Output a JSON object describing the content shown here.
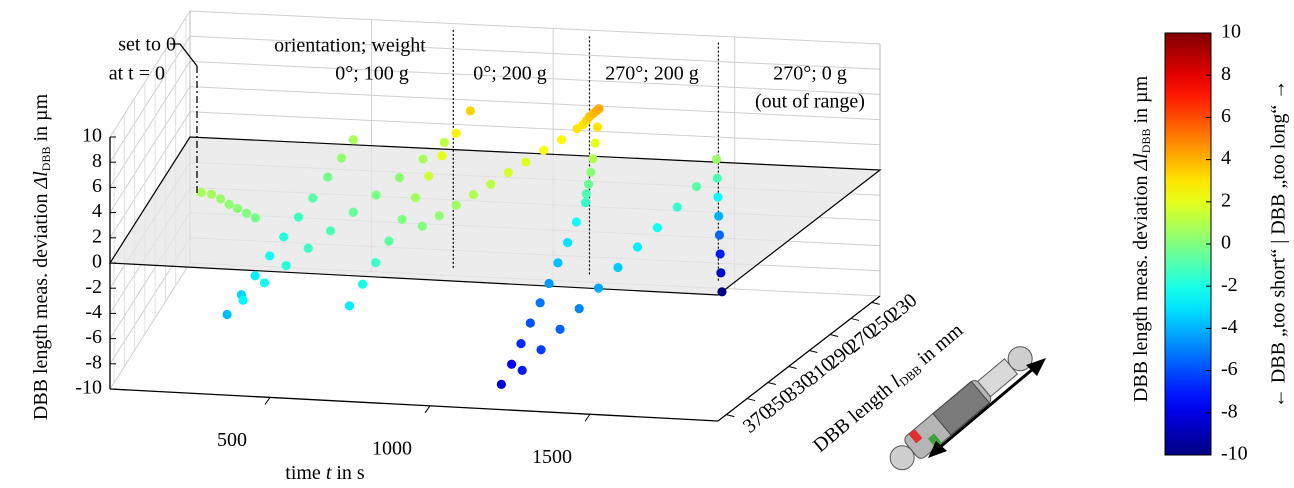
{
  "chart_data": {
    "type": "scatter3d",
    "zlabel": [
      "DBB length meas. deviation ",
      "Δl",
      "DBB",
      " in µm"
    ],
    "xlabel": [
      "time ",
      "t",
      " in s"
    ],
    "ylabel": [
      "DBB length ",
      "l",
      "DBB",
      " in mm"
    ],
    "xlim": [
      0,
      1900
    ],
    "xticks": [
      500,
      1000,
      1500
    ],
    "ylim": [
      378,
      222
    ],
    "yticks": [
      370,
      350,
      330,
      310,
      290,
      270,
      250,
      230
    ],
    "zlim": [
      -10,
      10
    ],
    "zticks": [
      10,
      8,
      6,
      4,
      2,
      0,
      -2,
      -4,
      -6,
      -8,
      -10
    ],
    "zero_plane": 0,
    "grid": true,
    "colormap": "jet",
    "colorbar": {
      "clim": [
        -10,
        10
      ],
      "ticks": [
        10,
        8,
        6,
        4,
        2,
        0,
        -2,
        -4,
        -6,
        -8,
        -10
      ],
      "label": [
        "DBB length meas. deviation ",
        "Δl",
        "DBB",
        " in µm"
      ],
      "side_label": "← DBB „too short“ | DBB „too long“ →"
    },
    "phase_boundaries": [
      725,
      1100,
      1455
    ],
    "annotations": [
      "set to 0",
      "at t = 0",
      "orientation; weight",
      "0°; 100 g",
      "0°; 200 g",
      "270°; 200 g",
      "270°; 0 g",
      "(out of range)"
    ],
    "series": [
      {
        "x": [
          150,
          180,
          210,
          240,
          270,
          300,
          330,
          360,
          372,
          384,
          396,
          408,
          420,
          432,
          444,
          454,
          460,
          410,
          445,
          480,
          515,
          550,
          585,
          620,
          655,
          690,
          720,
          735,
          740,
          745,
          750,
          755,
          760,
          765,
          770,
          775,
          780,
          830,
          860,
          890,
          920,
          950,
          980,
          1010,
          1040,
          1070,
          1095,
          1100,
          1108,
          1116,
          1124,
          1132,
          1140,
          1145,
          1148,
          1151,
          1154,
          1157,
          1160,
          1165,
          1170,
          1176,
          1182,
          1188,
          1194,
          1200,
          1205,
          1210,
          1215,
          1280,
          1298,
          1316,
          1334,
          1352,
          1370,
          1388,
          1406,
          1424,
          1440,
          1460,
          1462,
          1464,
          1466,
          1468,
          1470,
          1472,
          1475
        ],
        "y": [
          300,
          300,
          302,
          305,
          308,
          310,
          312,
          375,
          358,
          342,
          325,
          309,
          292,
          276,
          259,
          243,
          228,
          375,
          359,
          343,
          327,
          311,
          295,
          279,
          263,
          247,
          232,
          372,
          356,
          340,
          324,
          308,
          292,
          276,
          260,
          243,
          226,
          315,
          306,
          297,
          288,
          279,
          270,
          261,
          252,
          243,
          235,
          230,
          229,
          229,
          228,
          228,
          228,
          232,
          236,
          240,
          244,
          248,
          252,
          255,
          268,
          281,
          295,
          308,
          321,
          335,
          348,
          361,
          375,
          375,
          360,
          345,
          330,
          315,
          300,
          285,
          270,
          255,
          240,
          226,
          226,
          226,
          226,
          226,
          226,
          226,
          226
        ],
        "z": [
          0.8,
          0.7,
          0.5,
          0.3,
          0.2,
          0,
          -0.2,
          -3.8,
          -3.3,
          -2.8,
          -2.3,
          -1.8,
          -1.3,
          -0.8,
          -0.2,
          0.3,
          0.8,
          -2.6,
          -2.2,
          -1.8,
          -1.4,
          -1.0,
          -0.5,
          -0.1,
          0.3,
          0.8,
          1.2,
          -2.8,
          -2.1,
          -1.4,
          -0.7,
          0,
          0.7,
          1.4,
          2.0,
          2.7,
          3.4,
          0,
          0.3,
          0.6,
          0.9,
          1.2,
          1.6,
          1.9,
          2.3,
          2.6,
          3.0,
          3.0,
          3.3,
          3.6,
          3.8,
          4.0,
          4.2,
          3.0,
          2.0,
          1.0,
          0.2,
          -0.5,
          -1.0,
          -1.5,
          -2.2,
          -3.0,
          -3.7,
          -4.5,
          -5.2,
          -5.9,
          -6.7,
          -7.5,
          -8.2,
          -7,
          -6.3,
          -5.6,
          -4.9,
          -4.2,
          -3.5,
          -2.8,
          -2.2,
          -1.5,
          -0.8,
          0.5,
          -1,
          -2.5,
          -4,
          -5.5,
          -7,
          -8.5,
          -10
        ]
      }
    ]
  }
}
